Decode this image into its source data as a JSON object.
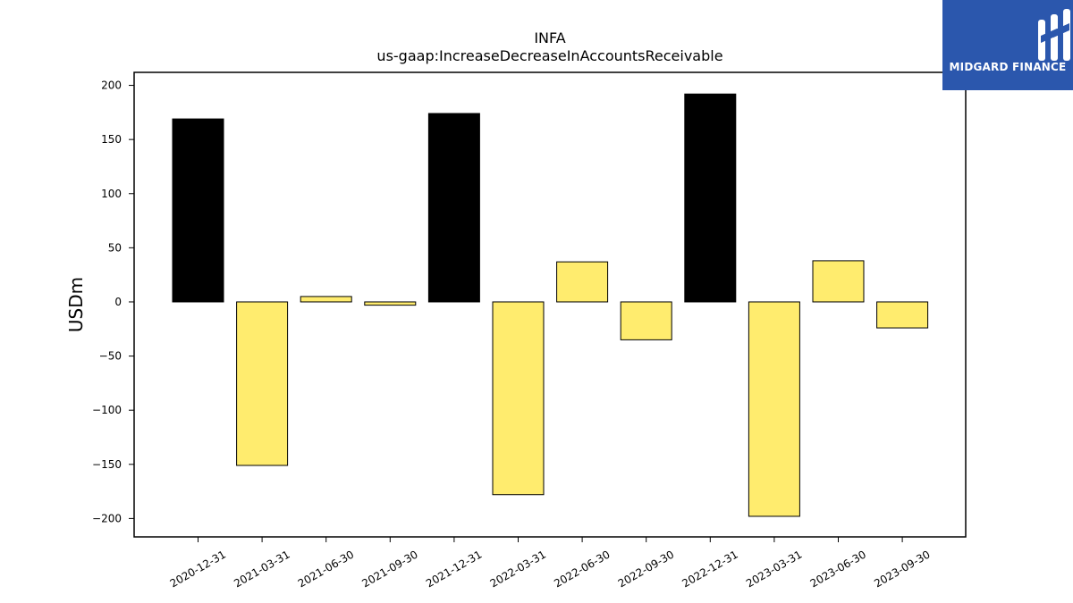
{
  "chart_data": {
    "type": "bar",
    "title": "INFA",
    "subtitle": "us-gaap:IncreaseDecreaseInAccountsReceivable",
    "ylabel": "USDm",
    "xlabel": "",
    "ylim": [
      -217,
      212
    ],
    "yticks": [
      200,
      150,
      100,
      50,
      0,
      -50,
      -100,
      -150,
      -200
    ],
    "ytick_labels": [
      "200",
      "150",
      "100",
      "50",
      "0",
      "−50",
      "−100",
      "−150",
      "−200"
    ],
    "categories": [
      "2020-12-31",
      "2021-03-31",
      "2021-06-30",
      "2021-09-30",
      "2021-12-31",
      "2022-03-31",
      "2022-06-30",
      "2022-09-30",
      "2022-12-31",
      "2023-03-31",
      "2023-06-30",
      "2023-09-30"
    ],
    "values": [
      169,
      -151,
      5,
      -3,
      174,
      -178,
      37,
      -35,
      192,
      -198,
      38,
      -24
    ],
    "bar_colors": [
      "#000000",
      "#ffec6e",
      "#ffec6e",
      "#ffec6e",
      "#000000",
      "#ffec6e",
      "#ffec6e",
      "#ffec6e",
      "#000000",
      "#ffec6e",
      "#ffec6e",
      "#ffec6e"
    ],
    "grid": false,
    "legend": "none"
  },
  "logo": {
    "text": "MIDGARD FINANCE",
    "background": "#2b57ad"
  }
}
